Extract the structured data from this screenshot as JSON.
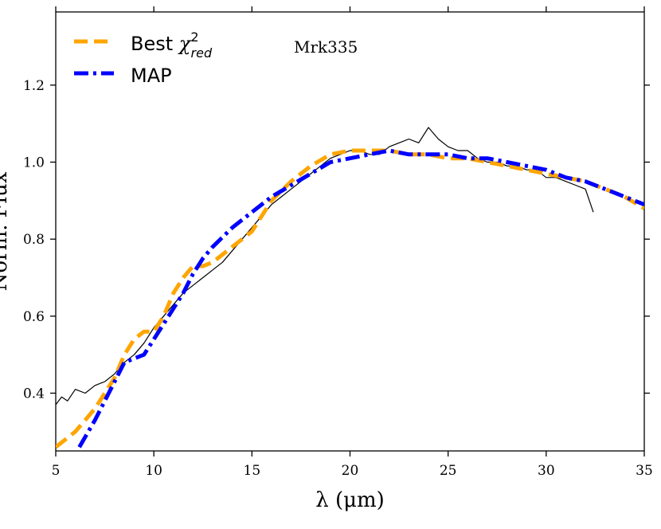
{
  "chart_data": {
    "type": "line",
    "title": "",
    "annotation": "Mrk335",
    "xlabel": "λ (μm)",
    "ylabel": "Norm. Flux",
    "xlim": [
      5,
      35
    ],
    "ylim": [
      0.25,
      1.39
    ],
    "xticks": [
      5,
      10,
      15,
      20,
      25,
      30,
      35
    ],
    "yticks": [
      0.4,
      0.6,
      0.8,
      1.0,
      1.2
    ],
    "ytick_labels": [
      "0.4",
      "0.6",
      "0.8",
      "1.0",
      "1.2"
    ],
    "legend": {
      "location": "top-left",
      "entries": [
        {
          "label_main": "Best ",
          "label_symbol": "χ",
          "label_sup": "2",
          "label_sub": "red",
          "series": "best"
        },
        {
          "label_main": "MAP",
          "series": "map"
        }
      ]
    },
    "series": [
      {
        "name": "observed",
        "color": "#000000",
        "style": "solid-thin",
        "x": [
          5.0,
          5.3,
          5.6,
          6.0,
          6.5,
          7.0,
          7.5,
          8.0,
          8.5,
          9.0,
          9.5,
          10.0,
          10.5,
          11.0,
          11.5,
          12.0,
          12.5,
          13.0,
          13.5,
          14.0,
          14.5,
          15.0,
          15.5,
          16.0,
          16.5,
          17.0,
          17.5,
          18.0,
          18.5,
          19.0,
          19.5,
          20.0,
          20.5,
          21.0,
          21.5,
          22.0,
          22.5,
          23.0,
          23.5,
          24.0,
          24.5,
          25.0,
          25.5,
          26.0,
          26.5,
          27.0,
          27.5,
          28.0,
          28.5,
          29.0,
          29.5,
          30.0,
          30.5,
          31.0,
          31.5,
          32.0,
          32.4
        ],
        "values": [
          0.37,
          0.39,
          0.38,
          0.41,
          0.4,
          0.42,
          0.43,
          0.45,
          0.48,
          0.5,
          0.53,
          0.57,
          0.6,
          0.63,
          0.66,
          0.68,
          0.7,
          0.72,
          0.74,
          0.77,
          0.8,
          0.83,
          0.86,
          0.89,
          0.91,
          0.93,
          0.95,
          0.97,
          0.99,
          1.01,
          1.02,
          1.03,
          1.03,
          1.02,
          1.02,
          1.04,
          1.05,
          1.06,
          1.05,
          1.09,
          1.06,
          1.04,
          1.03,
          1.03,
          1.01,
          1.0,
          1.0,
          0.99,
          0.99,
          0.98,
          0.98,
          0.96,
          0.96,
          0.95,
          0.94,
          0.93,
          0.87
        ]
      },
      {
        "name": "best",
        "color": "#FFA500",
        "style": "dashed",
        "x": [
          5.0,
          6.0,
          7.0,
          8.0,
          8.5,
          9.0,
          9.5,
          10.0,
          10.5,
          11.0,
          11.5,
          12.0,
          12.5,
          13.0,
          13.5,
          14.0,
          14.5,
          15.0,
          15.5,
          16.0,
          17.0,
          18.0,
          19.0,
          20.0,
          21.0,
          22.0,
          23.0,
          24.0,
          25.0,
          26.0,
          27.0,
          28.0,
          29.0,
          30.0,
          31.0,
          32.0,
          33.0,
          34.0,
          35.0
        ],
        "values": [
          0.26,
          0.3,
          0.36,
          0.44,
          0.5,
          0.54,
          0.56,
          0.56,
          0.6,
          0.66,
          0.7,
          0.73,
          0.73,
          0.74,
          0.76,
          0.78,
          0.8,
          0.82,
          0.86,
          0.9,
          0.95,
          0.99,
          1.02,
          1.03,
          1.03,
          1.03,
          1.02,
          1.02,
          1.01,
          1.01,
          1.0,
          0.99,
          0.98,
          0.97,
          0.96,
          0.95,
          0.93,
          0.91,
          0.88
        ]
      },
      {
        "name": "map",
        "color": "#0000FF",
        "style": "dashdot",
        "x": [
          6.2,
          7.0,
          8.0,
          8.5,
          9.0,
          9.5,
          10.0,
          10.5,
          11.0,
          11.5,
          12.0,
          12.5,
          13.0,
          14.0,
          15.0,
          16.0,
          17.0,
          18.0,
          19.0,
          20.0,
          21.0,
          22.0,
          23.0,
          24.0,
          25.0,
          26.0,
          27.0,
          28.0,
          29.0,
          30.0,
          31.0,
          32.0,
          33.0,
          34.0,
          35.0
        ],
        "values": [
          0.26,
          0.33,
          0.43,
          0.48,
          0.49,
          0.5,
          0.54,
          0.58,
          0.62,
          0.66,
          0.71,
          0.75,
          0.78,
          0.83,
          0.87,
          0.91,
          0.94,
          0.97,
          1.0,
          1.01,
          1.02,
          1.03,
          1.02,
          1.02,
          1.02,
          1.01,
          1.01,
          1.0,
          0.99,
          0.98,
          0.96,
          0.95,
          0.93,
          0.91,
          0.89
        ]
      }
    ]
  }
}
